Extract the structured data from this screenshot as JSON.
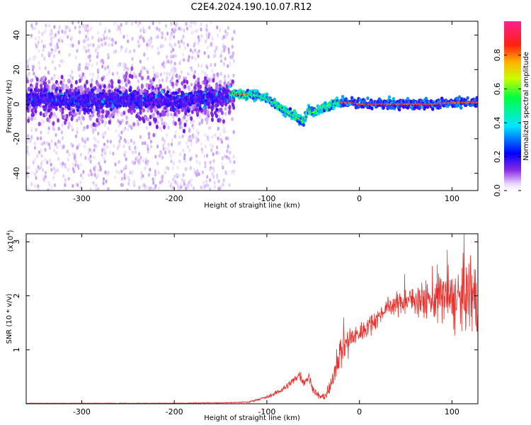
{
  "title": "C2E4.2024.190.10.07.R12",
  "chart_data": [
    {
      "type": "heatmap",
      "xlabel": "Height of straight line (km)",
      "ylabel": "Frequency (Hz)",
      "xlim": [
        -360,
        128
      ],
      "ylim": [
        -50,
        48
      ],
      "x_ticks": [
        -300,
        -200,
        -100,
        0,
        100
      ],
      "x_tick_labels": [
        "-300",
        "-200",
        "-100",
        "0",
        "100"
      ],
      "y_ticks": [
        -40,
        -20,
        0,
        20,
        40
      ],
      "y_tick_labels": [
        "-40",
        "-20",
        "0",
        "20",
        "40"
      ],
      "colorbar": {
        "label": "Normalized spectral amplitude",
        "range": [
          0,
          1
        ],
        "ticks": [
          0.0,
          0.2,
          0.4,
          0.6,
          0.8
        ],
        "tick_labels": [
          "0.0",
          "0.2",
          "0.4",
          "0.6",
          "0.8"
        ],
        "colormap": "rainbow"
      },
      "ridge": {
        "x": [
          -360,
          -300,
          -250,
          -200,
          -150,
          -130,
          -110,
          -100,
          -90,
          -80,
          -70,
          -60,
          -55,
          -50,
          -40,
          -30,
          -20,
          -10,
          0,
          20,
          50,
          80,
          100,
          128
        ],
        "y": [
          3,
          2,
          3,
          2,
          4,
          6,
          5,
          3,
          0,
          -4,
          -7,
          -10,
          -3,
          -5,
          -2,
          0,
          1,
          1,
          0,
          0,
          0,
          0,
          1,
          1
        ]
      },
      "scatter_extent": {
        "x": [
          -360,
          -135
        ],
        "y": [
          -50,
          48
        ]
      }
    },
    {
      "type": "line",
      "xlabel": "Height of straight line (km)",
      "ylabel": "SNR (10 * v/v)",
      "y_multiplier_label": "(x10",
      "y_multiplier_exponent": "4",
      "y_multiplier_close": ")",
      "xlim": [
        -360,
        128
      ],
      "ylim": [
        0,
        3.15
      ],
      "x_ticks": [
        -300,
        -200,
        -100,
        0,
        100
      ],
      "x_tick_labels": [
        "-300",
        "-200",
        "-100",
        "0",
        "100"
      ],
      "y_ticks": [
        1,
        2,
        3
      ],
      "y_tick_labels": [
        "1",
        "2",
        "3"
      ],
      "series": [
        {
          "color": "#e8312c",
          "envelope": {
            "x": [
              -360,
              -200,
              -140,
              -120,
              -110,
              -100,
              -90,
              -80,
              -70,
              -65,
              -60,
              -55,
              -50,
              -45,
              -40,
              -35,
              -30,
              -25,
              -20,
              -15,
              -10,
              0,
              10,
              20,
              30,
              40,
              50,
              60,
              70,
              80,
              90,
              100,
              110,
              120,
              128
            ],
            "y": [
              0.01,
              0.01,
              0.02,
              0.03,
              0.08,
              0.12,
              0.2,
              0.3,
              0.45,
              0.55,
              0.4,
              0.5,
              0.28,
              0.15,
              0.12,
              0.18,
              0.35,
              0.8,
              0.95,
              1.1,
              1.2,
              1.3,
              1.45,
              1.6,
              1.8,
              1.85,
              1.9,
              1.95,
              1.9,
              1.95,
              2.0,
              1.9,
              1.95,
              2.05,
              1.9
            ]
          },
          "noise_amplitude": {
            "x": [
              -360,
              -130,
              -100,
              -60,
              -40,
              -30,
              -20,
              0,
              30,
              60,
              80,
              100,
              128
            ],
            "y": [
              0.005,
              0.01,
              0.04,
              0.12,
              0.08,
              0.2,
              0.45,
              0.25,
              0.2,
              0.35,
              0.6,
              0.75,
              0.85
            ]
          },
          "peaks": [
            {
              "x": -17,
              "y": 1.6
            },
            {
              "x": 49,
              "y": 2.4
            },
            {
              "x": 95,
              "y": 2.85
            },
            {
              "x": 113,
              "y": 3.15
            },
            {
              "x": 120,
              "y": 2.75
            }
          ]
        }
      ]
    }
  ]
}
